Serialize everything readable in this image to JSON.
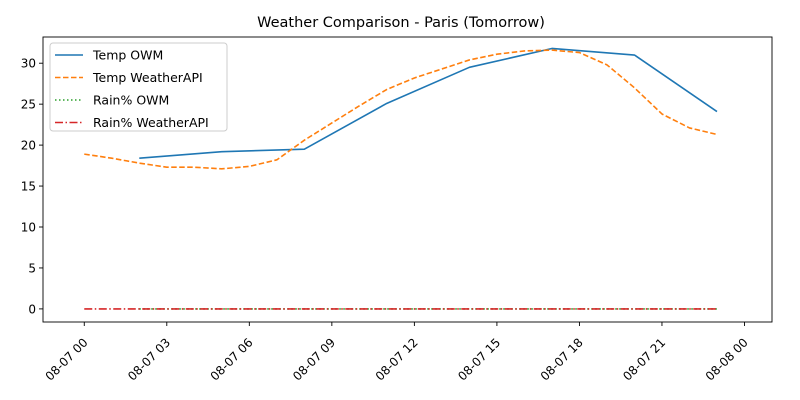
{
  "chart_data": {
    "type": "line",
    "title": "Weather Comparison - Paris (Tomorrow)",
    "xlabel": "",
    "ylabel": "",
    "x_unit": "hour of day (08-07)",
    "xlim": [
      -1.5,
      25
    ],
    "ylim": [
      -1.6,
      33.2
    ],
    "x_ticks": [
      0,
      3,
      6,
      9,
      12,
      15,
      18,
      21,
      24
    ],
    "x_tick_labels": [
      "08-07 00",
      "08-07 03",
      "08-07 06",
      "08-07 09",
      "08-07 12",
      "08-07 15",
      "08-07 18",
      "08-07 21",
      "08-08 00"
    ],
    "y_ticks": [
      0,
      5,
      10,
      15,
      20,
      25,
      30
    ],
    "y_tick_labels": [
      "0",
      "5",
      "10",
      "15",
      "20",
      "25",
      "30"
    ],
    "grid": false,
    "legend": "top-left",
    "series": [
      {
        "name": "Temp OWM",
        "color": "#1f77b4",
        "style": "solid",
        "x": [
          2,
          5,
          8,
          11,
          14,
          17,
          20,
          23
        ],
        "y": [
          18.4,
          19.2,
          19.5,
          25.1,
          29.5,
          31.8,
          31.0,
          24.1
        ]
      },
      {
        "name": "Temp WeatherAPI",
        "color": "#ff7f0e",
        "style": "dashed",
        "x": [
          0,
          1,
          2,
          3,
          4,
          5,
          6,
          7,
          8,
          9,
          10,
          11,
          12,
          13,
          14,
          15,
          16,
          17,
          18,
          19,
          20,
          21,
          22,
          23
        ],
        "y": [
          18.9,
          18.4,
          17.8,
          17.3,
          17.3,
          17.1,
          17.4,
          18.2,
          20.6,
          22.7,
          24.8,
          26.8,
          28.2,
          29.3,
          30.4,
          31.1,
          31.5,
          31.6,
          31.3,
          29.8,
          27.0,
          23.8,
          22.1,
          21.3
        ]
      },
      {
        "name": "Rain% OWM",
        "color": "#2ca02c",
        "style": "dotted",
        "x": [
          2,
          5,
          8,
          11,
          14,
          17,
          20,
          23
        ],
        "y": [
          0,
          0,
          0,
          0,
          0,
          0,
          0,
          0
        ]
      },
      {
        "name": "Rain% WeatherAPI",
        "color": "#d62728",
        "style": "dashdot",
        "x": [
          0,
          1,
          2,
          3,
          4,
          5,
          6,
          7,
          8,
          9,
          10,
          11,
          12,
          13,
          14,
          15,
          16,
          17,
          18,
          19,
          20,
          21,
          22,
          23
        ],
        "y": [
          0,
          0,
          0,
          0,
          0,
          0,
          0,
          0,
          0,
          0,
          0,
          0,
          0,
          0,
          0,
          0,
          0,
          0,
          0,
          0,
          0,
          0,
          0,
          0
        ]
      }
    ]
  }
}
